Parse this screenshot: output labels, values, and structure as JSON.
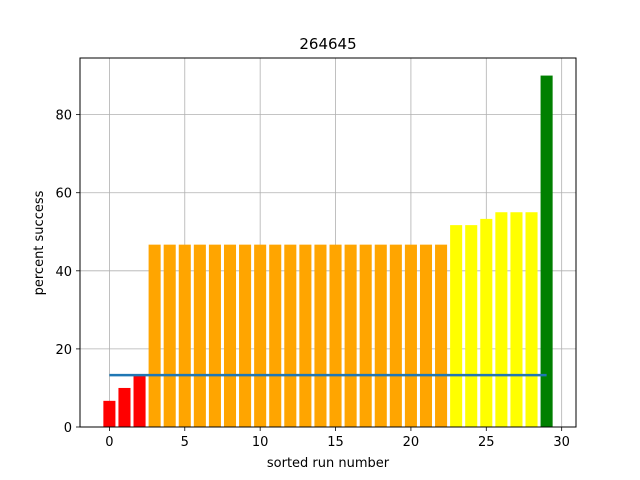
{
  "chart_data": {
    "type": "bar",
    "title": "264645",
    "xlabel": "sorted run number",
    "ylabel": "percent success",
    "xlim": [
      -1.95,
      30.95
    ],
    "ylim": [
      0,
      94.5
    ],
    "xticks": [
      0,
      5,
      10,
      15,
      20,
      25,
      30
    ],
    "yticks": [
      0,
      20,
      40,
      60,
      80
    ],
    "grid": true,
    "x": [
      0,
      1,
      2,
      3,
      4,
      5,
      6,
      7,
      8,
      9,
      10,
      11,
      12,
      13,
      14,
      15,
      16,
      17,
      18,
      19,
      20,
      21,
      22,
      23,
      24,
      25,
      26,
      27,
      28,
      29
    ],
    "values": [
      6.7,
      10.0,
      13.3,
      46.7,
      46.7,
      46.7,
      46.7,
      46.7,
      46.7,
      46.7,
      46.7,
      46.7,
      46.7,
      46.7,
      46.7,
      46.7,
      46.7,
      46.7,
      46.7,
      46.7,
      46.7,
      46.7,
      46.7,
      51.7,
      51.7,
      53.3,
      55.0,
      55.0,
      55.0,
      90.0
    ],
    "bar_colors": [
      "#ff0000",
      "#ff0000",
      "#ff0000",
      "#ffa500",
      "#ffa500",
      "#ffa500",
      "#ffa500",
      "#ffa500",
      "#ffa500",
      "#ffa500",
      "#ffa500",
      "#ffa500",
      "#ffa500",
      "#ffa500",
      "#ffa500",
      "#ffa500",
      "#ffa500",
      "#ffa500",
      "#ffa500",
      "#ffa500",
      "#ffa500",
      "#ffa500",
      "#ffa500",
      "#ffff00",
      "#ffff00",
      "#ffff00",
      "#ffff00",
      "#ffff00",
      "#ffff00",
      "#008000"
    ],
    "reference_line": {
      "y": 13.3,
      "x_start": 0,
      "x_end": 29,
      "color": "#1f77b4"
    }
  }
}
